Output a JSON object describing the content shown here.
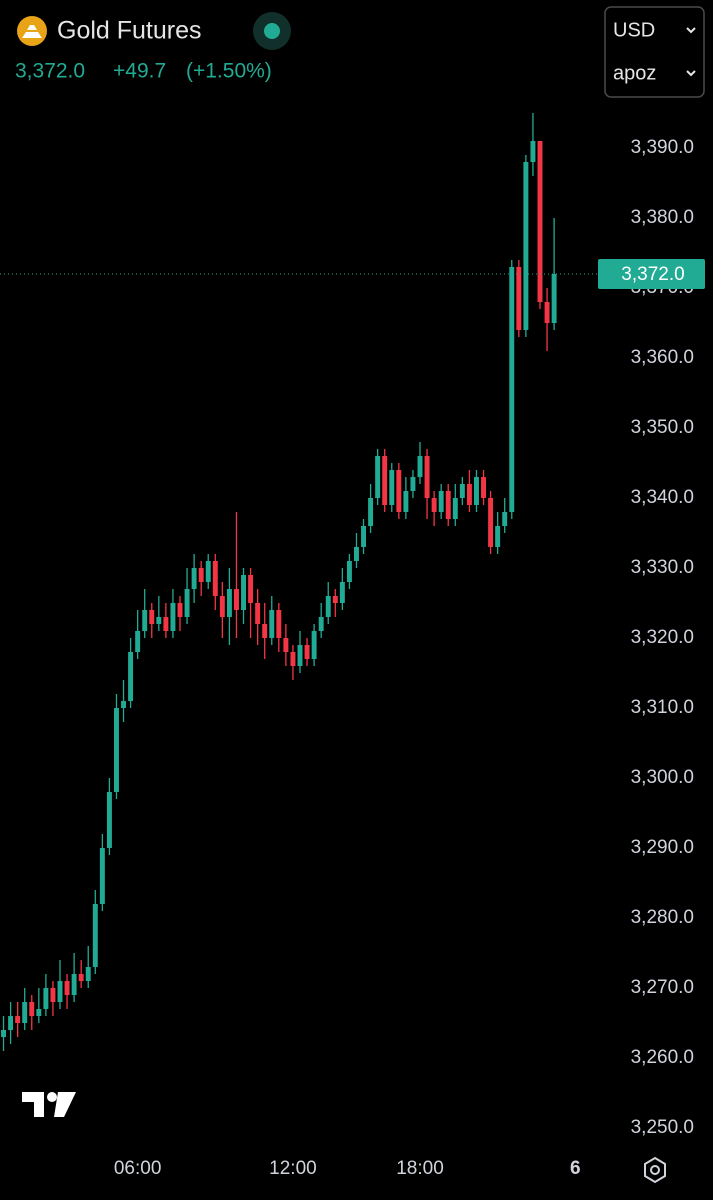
{
  "header": {
    "title": "Gold Futures",
    "quote": "3,372.0",
    "change": "+49.7",
    "change_pct": "(+1.50%)",
    "currency": "USD",
    "unit": "apoz"
  },
  "chart_data": {
    "type": "candlestick",
    "up_color": "#22ab94",
    "down_color": "#f23645",
    "open": [
      3263,
      3264,
      3266,
      3265,
      3268,
      3266,
      3267,
      3270,
      3268,
      3271,
      3269,
      3272,
      3271,
      3273,
      3282,
      3290,
      3298,
      3310,
      3311,
      3318,
      3321,
      3324,
      3322,
      3323,
      3321,
      3325,
      3323,
      3327,
      3330,
      3328,
      3331,
      3326,
      3323,
      3327,
      3324,
      3329,
      3325,
      3322,
      3320,
      3324,
      3320,
      3318,
      3316,
      3319,
      3317,
      3321,
      3323,
      3326,
      3325,
      3328,
      3331,
      3333,
      3336,
      3340,
      3346,
      3339,
      3344,
      3338,
      3341,
      3343,
      3346,
      3340,
      3338,
      3341,
      3337,
      3340,
      3342,
      3339,
      3343,
      3340,
      3333,
      3336,
      3338,
      3373,
      3364,
      3388,
      3391,
      3368,
      3365
    ],
    "high": [
      3266,
      3268,
      3268,
      3270,
      3269,
      3270,
      3272,
      3271,
      3274,
      3272,
      3275,
      3274,
      3276,
      3284,
      3292,
      3300,
      3312,
      3314,
      3320,
      3324,
      3327,
      3325,
      3326,
      3325,
      3327,
      3326,
      3330,
      3332,
      3331,
      3332,
      3332,
      3328,
      3330,
      3338,
      3330,
      3330,
      3327,
      3325,
      3326,
      3325,
      3322,
      3319,
      3321,
      3320,
      3322,
      3325,
      3328,
      3327,
      3330,
      3332,
      3335,
      3337,
      3342,
      3347,
      3347,
      3345,
      3345,
      3343,
      3344,
      3348,
      3347,
      3341,
      3342,
      3342,
      3342,
      3343,
      3344,
      3344,
      3344,
      3341,
      3338,
      3340,
      3374,
      3374,
      3389,
      3395,
      3391,
      3370,
      3380
    ],
    "low": [
      3261,
      3262,
      3263,
      3264,
      3264,
      3265,
      3266,
      3266,
      3267,
      3267,
      3268,
      3270,
      3270,
      3272,
      3281,
      3289,
      3297,
      3308,
      3310,
      3317,
      3320,
      3320,
      3321,
      3320,
      3320,
      3321,
      3322,
      3325,
      3326,
      3327,
      3324,
      3320,
      3319,
      3320,
      3322,
      3320,
      3319,
      3317,
      3319,
      3318,
      3316,
      3314,
      3315,
      3316,
      3316,
      3320,
      3322,
      3323,
      3324,
      3327,
      3330,
      3332,
      3335,
      3339,
      3338,
      3338,
      3337,
      3337,
      3340,
      3342,
      3337,
      3336,
      3337,
      3336,
      3336,
      3339,
      3338,
      3338,
      3339,
      3332,
      3332,
      3335,
      3337,
      3363,
      3363,
      3386,
      3367,
      3361,
      3364
    ],
    "close": [
      3264,
      3266,
      3265,
      3268,
      3266,
      3267,
      3270,
      3268,
      3271,
      3269,
      3272,
      3271,
      3273,
      3282,
      3290,
      3298,
      3310,
      3311,
      3318,
      3321,
      3324,
      3322,
      3323,
      3321,
      3325,
      3323,
      3327,
      3330,
      3328,
      3331,
      3326,
      3323,
      3327,
      3324,
      3329,
      3325,
      3322,
      3320,
      3324,
      3320,
      3318,
      3316,
      3319,
      3317,
      3321,
      3323,
      3326,
      3325,
      3328,
      3331,
      3333,
      3336,
      3340,
      3346,
      3339,
      3344,
      3338,
      3341,
      3343,
      3346,
      3340,
      3338,
      3341,
      3337,
      3340,
      3342,
      3339,
      3343,
      3340,
      3333,
      3336,
      3338,
      3373,
      3364,
      3388,
      3391,
      3368,
      3365,
      3372
    ],
    "xlim": [
      -0.5,
      84.5
    ],
    "xticks": [
      {
        "value": 19,
        "label": "06:00"
      },
      {
        "value": 41,
        "label": "12:00"
      },
      {
        "value": 59,
        "label": "18:00"
      },
      {
        "value": 81,
        "label": "6"
      }
    ],
    "ylim": [
      3246.86,
      3411.14
    ],
    "yticks": [
      {
        "value": 3250,
        "label": "3,250.0"
      },
      {
        "value": 3260,
        "label": "3,260.0"
      },
      {
        "value": 3270,
        "label": "3,270.0"
      },
      {
        "value": 3280,
        "label": "3,280.0"
      },
      {
        "value": 3290,
        "label": "3,290.0"
      },
      {
        "value": 3300,
        "label": "3,300.0"
      },
      {
        "value": 3310,
        "label": "3,310.0"
      },
      {
        "value": 3320,
        "label": "3,320.0"
      },
      {
        "value": 3330,
        "label": "3,330.0"
      },
      {
        "value": 3340,
        "label": "3,340.0"
      },
      {
        "value": 3350,
        "label": "3,350.0"
      },
      {
        "value": 3360,
        "label": "3,360.0"
      },
      {
        "value": 3370,
        "label": "3,370.0"
      },
      {
        "value": 3380,
        "label": "3,380.0"
      },
      {
        "value": 3390,
        "label": "3,390.0"
      }
    ],
    "last": {
      "value": 3372,
      "label": "3,372.0"
    }
  }
}
